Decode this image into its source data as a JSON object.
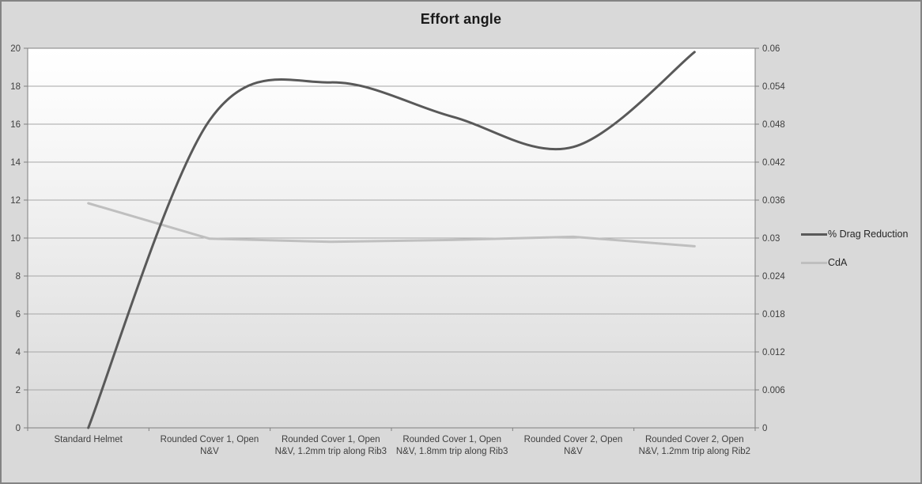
{
  "title": "Effort angle",
  "chart_data": {
    "type": "line",
    "title": "Effort angle",
    "categories": [
      "Standard Helmet",
      "Rounded Cover 1, Open N&V",
      "Rounded Cover 1, Open N&V, 1.2mm trip along Rib3",
      "Rounded Cover 1, Open N&V, 1.8mm trip along Rib3",
      "Rounded Cover 2, Open N&V",
      "Rounded Cover 2, Open N&V, 1.2mm trip along Rib2"
    ],
    "series": [
      {
        "name": "% Drag Reduction",
        "axis": "left",
        "color": "#595959",
        "smooth": true,
        "line_width": 3,
        "values": [
          0,
          16.2,
          18.2,
          16.4,
          14.8,
          19.8
        ]
      },
      {
        "name": "CdA",
        "axis": "right",
        "color": "#bfbfbf",
        "smooth": false,
        "line_width": 3,
        "values": [
          0.0355,
          0.0299,
          0.0294,
          0.0297,
          0.0302,
          0.0287
        ]
      }
    ],
    "left_axis": {
      "min": 0,
      "max": 20,
      "step": 2,
      "tick_labels": [
        "0",
        "2",
        "4",
        "6",
        "8",
        "10",
        "12",
        "14",
        "16",
        "18",
        "20"
      ]
    },
    "right_axis": {
      "min": 0,
      "max": 0.06,
      "step": 0.006,
      "tick_labels": [
        "0",
        "0.006",
        "0.012",
        "0.018",
        "0.024",
        "0.03",
        "0.036",
        "0.042",
        "0.048",
        "0.054",
        "0.06"
      ]
    },
    "grid": true,
    "legend_position": "right"
  },
  "legend": {
    "items": [
      {
        "label": "% Drag Reduction",
        "color": "#595959"
      },
      {
        "label": "CdA",
        "color": "#bfbfbf"
      }
    ]
  },
  "colors": {
    "chart_background": "#d9d9d9",
    "plot_gradient_top": "#ffffff",
    "plot_gradient_bottom": "#dadada",
    "gridline": "#a6a6a6",
    "axis_line": "#808080",
    "border": "#848484",
    "title_text": "#1a1a1a",
    "axis_text": "#3f3f3f"
  }
}
